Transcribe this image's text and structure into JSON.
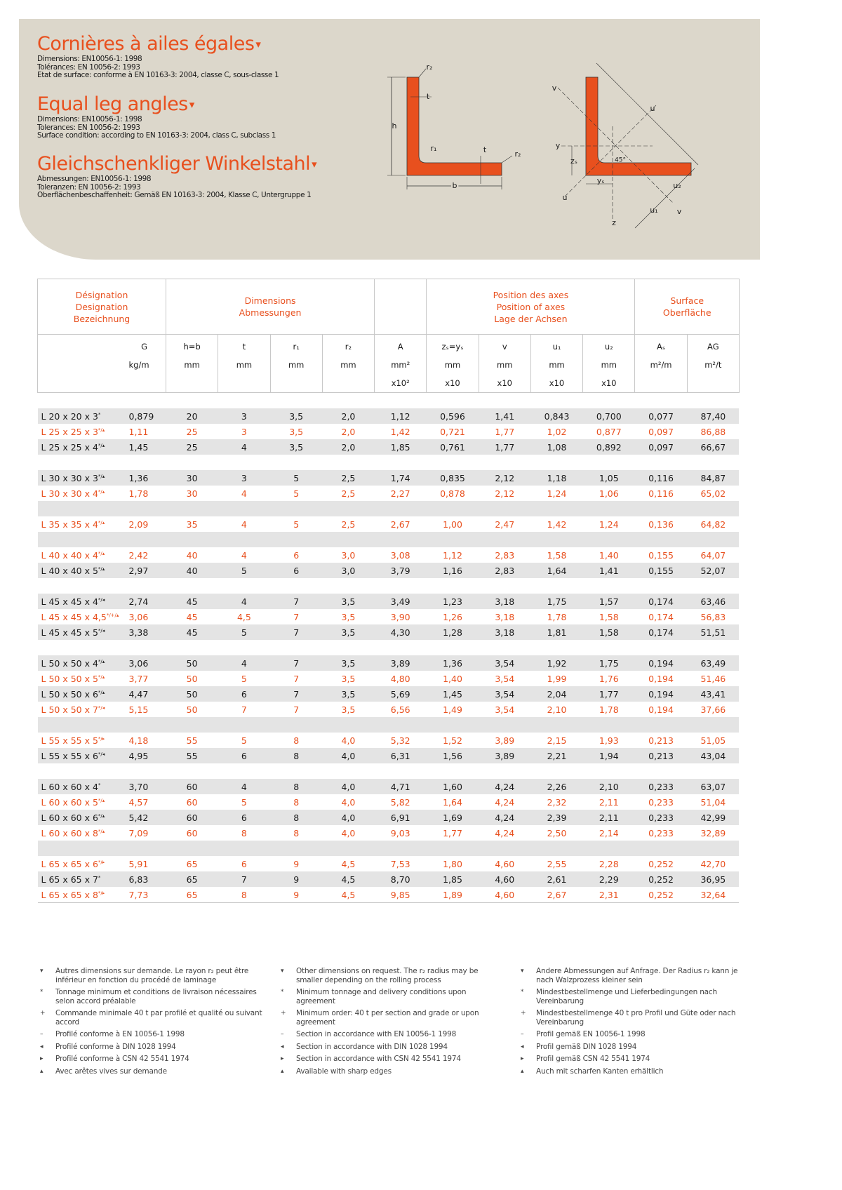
{
  "header": {
    "sections": [
      {
        "title": "Cornières à ailes égales",
        "lines": [
          "Dimensions: EN10056-1: 1998",
          "Tolérances: EN 10056-2: 1993",
          "Etat de surface: conforme à EN 10163-3: 2004, classe C, sous-classe 1"
        ]
      },
      {
        "title": "Equal leg angles",
        "lines": [
          "Dimensions: EN10056-1: 1998",
          "Tolerances: EN 10056-2: 1993",
          "Surface condition: according to EN 10163-3: 2004, class C, subclass 1"
        ]
      },
      {
        "title": "Gleichschenkliger Winkelstahl",
        "lines": [
          "Abmessungen: EN10056-1: 1998",
          "Toleranzen: EN 10056-2: 1993",
          "Oberflächenbeschaffenheit: Gemäß EN 10163-3: 2004, Klasse C, Untergruppe 1"
        ]
      }
    ]
  },
  "diagram": {
    "left": [
      "r₂",
      "t",
      "h",
      "r₁",
      "t",
      "r₂",
      "b"
    ],
    "right": [
      "v",
      "u",
      "y",
      "zₛ",
      "45°",
      "yₛ",
      "u",
      "z",
      "u₁",
      "u₂",
      "v"
    ]
  },
  "table": {
    "group_headers": [
      [
        "Désignation",
        "Designation",
        "Bezeichnung"
      ],
      [
        "Dimensions",
        "Abmessungen"
      ],
      [
        "Position des axes",
        "Position of axes",
        "Lage der Achsen"
      ],
      [
        "Surface",
        "Oberfläche"
      ]
    ],
    "columns": [
      {
        "symbol": "G",
        "unit": "kg/m"
      },
      {
        "symbol": "h=b",
        "unit": "mm"
      },
      {
        "symbol": "t",
        "unit": "mm"
      },
      {
        "symbol": "r₁",
        "unit": "mm"
      },
      {
        "symbol": "r₂",
        "unit": "mm"
      },
      {
        "symbol": "A",
        "unit": "mm²",
        "scale": "x10²"
      },
      {
        "symbol": "zₛ=yₛ",
        "unit": "mm",
        "scale": "x10"
      },
      {
        "symbol": "v",
        "unit": "mm",
        "scale": "x10"
      },
      {
        "symbol": "u₁",
        "unit": "mm",
        "scale": "x10"
      },
      {
        "symbol": "u₂",
        "unit": "mm",
        "scale": "x10"
      },
      {
        "symbol": "Aₛ",
        "unit": "m²/m"
      },
      {
        "symbol": "AG",
        "unit": "m²/t"
      }
    ],
    "groups": [
      [
        {
          "designation": "L 20 x 20 x 3",
          "note": "*",
          "color": "#1a1a1a",
          "values": [
            "0,879",
            "20",
            "3",
            "3,5",
            "2,0",
            "1,12",
            "0,596",
            "1,41",
            "0,843",
            "0,700",
            "0,077",
            "87,40"
          ]
        },
        {
          "designation": "L 25 x 25 x 3",
          "note": "*/▴",
          "color": "#e8501e",
          "values": [
            "1,11",
            "25",
            "3",
            "3,5",
            "2,0",
            "1,42",
            "0,721",
            "1,77",
            "1,02",
            "0,877",
            "0,097",
            "86,88"
          ]
        },
        {
          "designation": "L 25 x 25 x 4",
          "note": "*/▴",
          "color": "#1a1a1a",
          "values": [
            "1,45",
            "25",
            "4",
            "3,5",
            "2,0",
            "1,85",
            "0,761",
            "1,77",
            "1,08",
            "0,892",
            "0,097",
            "66,67"
          ]
        }
      ],
      [
        {
          "designation": "L 30 x 30 x 3",
          "note": "*/▴",
          "color": "#1a1a1a",
          "values": [
            "1,36",
            "30",
            "3",
            "5",
            "2,5",
            "1,74",
            "0,835",
            "2,12",
            "1,18",
            "1,05",
            "0,116",
            "84,87"
          ]
        },
        {
          "designation": "L 30 x 30 x 4",
          "note": "*/▴",
          "color": "#e8501e",
          "values": [
            "1,78",
            "30",
            "4",
            "5",
            "2,5",
            "2,27",
            "0,878",
            "2,12",
            "1,24",
            "1,06",
            "0,116",
            "65,02"
          ]
        }
      ],
      [
        {
          "designation": "L 35 x 35 x 4",
          "note": "*/▴",
          "color": "#e8501e",
          "values": [
            "2,09",
            "35",
            "4",
            "5",
            "2,5",
            "2,67",
            "1,00",
            "2,47",
            "1,42",
            "1,24",
            "0,136",
            "64,82"
          ]
        }
      ],
      [
        {
          "designation": "L 40 x 40 x 4",
          "note": "*/▴",
          "color": "#e8501e",
          "values": [
            "2,42",
            "40",
            "4",
            "6",
            "3,0",
            "3,08",
            "1,12",
            "2,83",
            "1,58",
            "1,40",
            "0,155",
            "64,07"
          ]
        },
        {
          "designation": "L 40 x 40 x 5",
          "note": "*/▴",
          "color": "#1a1a1a",
          "values": [
            "2,97",
            "40",
            "5",
            "6",
            "3,0",
            "3,79",
            "1,16",
            "2,83",
            "1,64",
            "1,41",
            "0,155",
            "52,07"
          ]
        }
      ],
      [
        {
          "designation": "L 45 x 45 x 4",
          "note": "*/◂",
          "color": "#1a1a1a",
          "values": [
            "2,74",
            "45",
            "4",
            "7",
            "3,5",
            "3,49",
            "1,23",
            "3,18",
            "1,75",
            "1,57",
            "0,174",
            "63,46"
          ]
        },
        {
          "designation": "L 45 x 45 x 4,5",
          "note": "*/+/▴",
          "color": "#e8501e",
          "values": [
            "3,06",
            "45",
            "4,5",
            "7",
            "3,5",
            "3,90",
            "1,26",
            "3,18",
            "1,78",
            "1,58",
            "0,174",
            "56,83"
          ]
        },
        {
          "designation": "L 45 x 45 x 5",
          "note": "*/◂",
          "color": "#1a1a1a",
          "values": [
            "3,38",
            "45",
            "5",
            "7",
            "3,5",
            "4,30",
            "1,28",
            "3,18",
            "1,81",
            "1,58",
            "0,174",
            "51,51"
          ]
        }
      ],
      [
        {
          "designation": "L 50 x 50 x 4",
          "note": "*/▴",
          "color": "#1a1a1a",
          "values": [
            "3,06",
            "50",
            "4",
            "7",
            "3,5",
            "3,89",
            "1,36",
            "3,54",
            "1,92",
            "1,75",
            "0,194",
            "63,49"
          ]
        },
        {
          "designation": "L 50 x 50 x 5",
          "note": "*/▴",
          "color": "#e8501e",
          "values": [
            "3,77",
            "50",
            "5",
            "7",
            "3,5",
            "4,80",
            "1,40",
            "3,54",
            "1,99",
            "1,76",
            "0,194",
            "51,46"
          ]
        },
        {
          "designation": "L 50 x 50 x 6",
          "note": "*/▴",
          "color": "#1a1a1a",
          "values": [
            "4,47",
            "50",
            "6",
            "7",
            "3,5",
            "5,69",
            "1,45",
            "3,54",
            "2,04",
            "1,77",
            "0,194",
            "43,41"
          ]
        },
        {
          "designation": "L 50 x 50 x 7",
          "note": "*/◂",
          "color": "#e8501e",
          "values": [
            "5,15",
            "50",
            "7",
            "7",
            "3,5",
            "6,56",
            "1,49",
            "3,54",
            "2,10",
            "1,78",
            "0,194",
            "37,66"
          ]
        }
      ],
      [
        {
          "designation": "L 55 x 55 x 5",
          "note": "*/▸",
          "color": "#e8501e",
          "values": [
            "4,18",
            "55",
            "5",
            "8",
            "4,0",
            "5,32",
            "1,52",
            "3,89",
            "2,15",
            "1,93",
            "0,213",
            "51,05"
          ]
        },
        {
          "designation": "L 55 x 55 x 6",
          "note": "*/◂",
          "color": "#1a1a1a",
          "values": [
            "4,95",
            "55",
            "6",
            "8",
            "4,0",
            "6,31",
            "1,56",
            "3,89",
            "2,21",
            "1,94",
            "0,213",
            "43,04"
          ]
        }
      ],
      [
        {
          "designation": "L 60 x 60 x 4",
          "note": "*",
          "color": "#1a1a1a",
          "values": [
            "3,70",
            "60",
            "4",
            "8",
            "4,0",
            "4,71",
            "1,60",
            "4,24",
            "2,26",
            "2,10",
            "0,233",
            "63,07"
          ]
        },
        {
          "designation": "L 60 x 60 x 5",
          "note": "*/▴",
          "color": "#e8501e",
          "values": [
            "4,57",
            "60",
            "5",
            "8",
            "4,0",
            "5,82",
            "1,64",
            "4,24",
            "2,32",
            "2,11",
            "0,233",
            "51,04"
          ]
        },
        {
          "designation": "L 60 x 60 x 6",
          "note": "*/▴",
          "color": "#1a1a1a",
          "values": [
            "5,42",
            "60",
            "6",
            "8",
            "4,0",
            "6,91",
            "1,69",
            "4,24",
            "2,39",
            "2,11",
            "0,233",
            "42,99"
          ]
        },
        {
          "designation": "L 60 x 60 x 8",
          "note": "*/▴",
          "color": "#e8501e",
          "values": [
            "7,09",
            "60",
            "8",
            "8",
            "4,0",
            "9,03",
            "1,77",
            "4,24",
            "2,50",
            "2,14",
            "0,233",
            "32,89"
          ]
        }
      ],
      [
        {
          "designation": "L 65 x 65 x 6",
          "note": "*/▸",
          "color": "#e8501e",
          "values": [
            "5,91",
            "65",
            "6",
            "9",
            "4,5",
            "7,53",
            "1,80",
            "4,60",
            "2,55",
            "2,28",
            "0,252",
            "42,70"
          ]
        },
        {
          "designation": "L 65 x 65 x 7",
          "note": "*",
          "color": "#1a1a1a",
          "values": [
            "6,83",
            "65",
            "7",
            "9",
            "4,5",
            "8,70",
            "1,85",
            "4,60",
            "2,61",
            "2,29",
            "0,252",
            "36,95"
          ]
        },
        {
          "designation": "L 65 x 65 x 8",
          "note": "*/▸",
          "color": "#e8501e",
          "values": [
            "7,73",
            "65",
            "8",
            "9",
            "4,5",
            "9,85",
            "1,89",
            "4,60",
            "2,67",
            "2,31",
            "0,252",
            "32,64"
          ]
        }
      ]
    ]
  },
  "footnotes": {
    "markers": [
      "▾",
      "*",
      "+",
      "–",
      "◂",
      "▸",
      "▴"
    ],
    "columns": [
      [
        "Autres dimensions sur demande. Le rayon r₂ peut être inférieur en fonction du procédé de laminage",
        "Tonnage minimum et conditions de livraison nécessaires selon accord préalable",
        "Commande minimale 40 t par profilé et qualité ou suivant accord",
        "Profilé conforme à EN 10056-1 1998",
        "Profilé conforme à DIN 1028 1994",
        "Profilé conforme à CSN 42 5541 1974",
        "Avec arêtes vives sur demande"
      ],
      [
        "Other dimensions on request. The r₂ radius may be smaller depending on the rolling process",
        "Minimum tonnage and delivery conditions upon agreement",
        "Minimum order: 40 t per section and grade or upon agreement",
        "Section in accordance with EN 10056-1 1998",
        "Section in accordance with DIN 1028 1994",
        "Section in accordance with CSN 42 5541 1974",
        "Available with sharp edges"
      ],
      [
        "Andere Abmessungen auf Anfrage. Der Radius r₂ kann je nach Walzprozess kleiner sein",
        "Mindestbestellmenge und Lieferbedingungen nach Vereinbarung",
        "Mindestbestellmenge 40 t pro Profil und Güte oder nach Vereinbarung",
        "Profil gemäß EN 10056-1 1998",
        "Profil gemäß DIN 1028 1994",
        "Profil gemäß CSN 42 5541 1974",
        "Auch mit scharfen Kanten erhältlich"
      ]
    ]
  }
}
